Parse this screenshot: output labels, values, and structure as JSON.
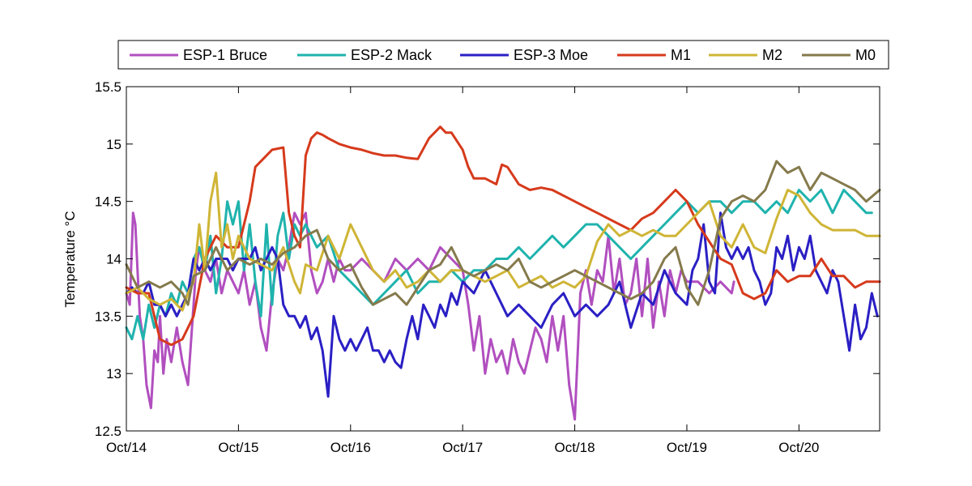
{
  "chart_data": {
    "type": "line",
    "title": "",
    "xlabel": "",
    "ylabel": "Temperature °C",
    "xlim": [
      0,
      6.72
    ],
    "ylim": [
      12.5,
      15.5
    ],
    "grid": false,
    "legend_position": "top",
    "x_ticks": [
      {
        "value": 0,
        "label": "Oct/14"
      },
      {
        "value": 1,
        "label": "Oct/15"
      },
      {
        "value": 2,
        "label": "Oct/16"
      },
      {
        "value": 3,
        "label": "Oct/17"
      },
      {
        "value": 4,
        "label": "Oct/18"
      },
      {
        "value": 5,
        "label": "Oct/19"
      },
      {
        "value": 6,
        "label": "Oct/20"
      }
    ],
    "y_ticks": [
      {
        "value": 12.5,
        "label": "12.5"
      },
      {
        "value": 13,
        "label": "13"
      },
      {
        "value": 13.5,
        "label": "13.5"
      },
      {
        "value": 14,
        "label": "14"
      },
      {
        "value": 14.5,
        "label": "14.5"
      },
      {
        "value": 15,
        "label": "15"
      },
      {
        "value": 15.5,
        "label": "15.5"
      }
    ],
    "series": [
      {
        "name": "ESP-1 Bruce",
        "color": "#b14fbf",
        "x": [
          0,
          0.03,
          0.06,
          0.08,
          0.1,
          0.12,
          0.15,
          0.18,
          0.22,
          0.25,
          0.28,
          0.3,
          0.33,
          0.36,
          0.4,
          0.45,
          0.5,
          0.55,
          0.6,
          0.62,
          0.65,
          0.7,
          0.75,
          0.8,
          0.85,
          0.9,
          0.95,
          1.0,
          1.05,
          1.1,
          1.15,
          1.2,
          1.25,
          1.3,
          1.35,
          1.4,
          1.45,
          1.5,
          1.55,
          1.6,
          1.65,
          1.7,
          1.75,
          1.8,
          1.85,
          1.9,
          1.95,
          2.0,
          2.1,
          2.2,
          2.3,
          2.4,
          2.5,
          2.6,
          2.7,
          2.8,
          2.9,
          3.0,
          3.05,
          3.1,
          3.15,
          3.2,
          3.25,
          3.3,
          3.35,
          3.4,
          3.45,
          3.5,
          3.55,
          3.6,
          3.65,
          3.7,
          3.75,
          3.8,
          3.85,
          3.9,
          3.95,
          4.0,
          4.05,
          4.1,
          4.15,
          4.2,
          4.25,
          4.3,
          4.35,
          4.4,
          4.45,
          4.5,
          4.55,
          4.6,
          4.65,
          4.7,
          4.75,
          4.8,
          4.85,
          4.9,
          4.95,
          5.0,
          5.1,
          5.2,
          5.3,
          5.4,
          5.42
        ],
        "values": [
          13.7,
          13.6,
          14.4,
          14.3,
          13.9,
          13.5,
          13.3,
          12.9,
          12.7,
          13.2,
          13.1,
          13.5,
          13.0,
          13.3,
          13.1,
          13.4,
          13.1,
          12.9,
          13.6,
          13.9,
          14.1,
          13.9,
          13.8,
          14.0,
          13.7,
          13.9,
          13.8,
          13.7,
          13.9,
          13.6,
          13.8,
          13.4,
          13.2,
          13.7,
          14.0,
          13.9,
          14.1,
          14.4,
          14.3,
          14.4,
          13.9,
          13.7,
          13.8,
          14.0,
          13.8,
          14.0,
          13.9,
          13.9,
          14.0,
          13.9,
          13.8,
          14.0,
          13.9,
          14.0,
          13.9,
          14.1,
          14.0,
          13.9,
          13.6,
          13.2,
          13.5,
          13.0,
          13.3,
          13.1,
          13.2,
          13.0,
          13.3,
          13.1,
          13.0,
          13.2,
          13.4,
          13.3,
          13.1,
          13.5,
          13.2,
          13.5,
          12.9,
          12.6,
          13.7,
          13.9,
          13.6,
          13.9,
          13.8,
          14.2,
          13.7,
          14.0,
          13.6,
          13.7,
          14.0,
          13.5,
          14.0,
          13.4,
          13.8,
          13.5,
          13.9,
          13.7,
          13.9,
          13.8,
          13.8,
          13.7,
          13.8,
          13.7,
          13.8
        ]
      },
      {
        "name": "ESP-2 Mack",
        "color": "#1fb3ad",
        "x": [
          0,
          0.05,
          0.1,
          0.15,
          0.2,
          0.25,
          0.3,
          0.35,
          0.4,
          0.45,
          0.5,
          0.55,
          0.6,
          0.65,
          0.7,
          0.75,
          0.8,
          0.85,
          0.9,
          0.95,
          1.0,
          1.05,
          1.1,
          1.15,
          1.2,
          1.25,
          1.3,
          1.35,
          1.4,
          1.45,
          1.5,
          1.55,
          1.6,
          1.7,
          1.8,
          1.9,
          2.0,
          2.1,
          2.2,
          2.3,
          2.4,
          2.5,
          2.6,
          2.7,
          2.8,
          2.9,
          3.0,
          3.1,
          3.2,
          3.3,
          3.4,
          3.5,
          3.6,
          3.7,
          3.8,
          3.9,
          4.0,
          4.1,
          4.2,
          4.3,
          4.4,
          4.5,
          4.6,
          4.7,
          4.8,
          4.9,
          5.0,
          5.1,
          5.2,
          5.3,
          5.4,
          5.5,
          5.6,
          5.7,
          5.8,
          5.9,
          6.0,
          6.1,
          6.2,
          6.3,
          6.4,
          6.5,
          6.6,
          6.65
        ],
        "values": [
          13.4,
          13.3,
          13.5,
          13.3,
          13.6,
          13.4,
          13.6,
          13.5,
          13.7,
          13.6,
          13.8,
          13.7,
          14.0,
          14.1,
          13.9,
          14.2,
          13.7,
          14.0,
          14.5,
          14.3,
          14.5,
          13.9,
          14.3,
          13.8,
          13.5,
          14.3,
          13.6,
          14.2,
          14.4,
          14.0,
          14.3,
          14.2,
          14.3,
          14.1,
          14.2,
          13.9,
          13.8,
          13.7,
          13.6,
          13.7,
          13.8,
          13.9,
          13.7,
          13.8,
          13.8,
          13.9,
          13.8,
          13.9,
          13.9,
          14.0,
          14.0,
          14.1,
          14.0,
          14.1,
          14.2,
          14.1,
          14.2,
          14.3,
          14.3,
          14.2,
          14.1,
          14.0,
          14.1,
          14.2,
          14.3,
          14.4,
          14.5,
          14.4,
          14.5,
          14.5,
          14.4,
          14.5,
          14.5,
          14.4,
          14.5,
          14.4,
          14.6,
          14.5,
          14.6,
          14.4,
          14.6,
          14.5,
          14.4,
          14.4
        ]
      },
      {
        "name": "ESP-3 Moe",
        "color": "#2a1fc4",
        "x": [
          0,
          0.05,
          0.1,
          0.15,
          0.2,
          0.25,
          0.3,
          0.35,
          0.4,
          0.45,
          0.5,
          0.55,
          0.6,
          0.65,
          0.7,
          0.75,
          0.8,
          0.85,
          0.9,
          0.95,
          1.0,
          1.05,
          1.1,
          1.15,
          1.2,
          1.25,
          1.3,
          1.35,
          1.4,
          1.45,
          1.5,
          1.55,
          1.6,
          1.65,
          1.7,
          1.75,
          1.8,
          1.85,
          1.9,
          1.95,
          2.0,
          2.05,
          2.1,
          2.15,
          2.2,
          2.25,
          2.3,
          2.35,
          2.4,
          2.45,
          2.5,
          2.55,
          2.6,
          2.65,
          2.7,
          2.75,
          2.8,
          2.85,
          2.9,
          2.95,
          3.0,
          3.1,
          3.2,
          3.3,
          3.4,
          3.5,
          3.6,
          3.7,
          3.8,
          3.9,
          4.0,
          4.1,
          4.2,
          4.3,
          4.4,
          4.5,
          4.6,
          4.7,
          4.8,
          4.9,
          5.0,
          5.05,
          5.1,
          5.15,
          5.2,
          5.25,
          5.3,
          5.35,
          5.4,
          5.45,
          5.5,
          5.55,
          5.6,
          5.65,
          5.7,
          5.75,
          5.8,
          5.85,
          5.9,
          5.95,
          6.0,
          6.05,
          6.1,
          6.15,
          6.2,
          6.25,
          6.3,
          6.35,
          6.4,
          6.45,
          6.5,
          6.55,
          6.6,
          6.65,
          6.7
        ],
        "values": [
          13.7,
          13.75,
          13.7,
          13.7,
          13.8,
          13.6,
          13.6,
          13.5,
          13.6,
          13.5,
          13.6,
          13.7,
          14.0,
          13.9,
          14.0,
          13.9,
          14.0,
          14.0,
          14.0,
          13.9,
          14.0,
          14.0,
          14.0,
          14.1,
          13.9,
          14.0,
          14.1,
          14.0,
          13.6,
          13.5,
          13.5,
          13.4,
          13.5,
          13.3,
          13.4,
          13.2,
          12.8,
          13.5,
          13.3,
          13.2,
          13.3,
          13.2,
          13.3,
          13.4,
          13.2,
          13.2,
          13.1,
          13.2,
          13.1,
          13.05,
          13.3,
          13.5,
          13.3,
          13.6,
          13.5,
          13.4,
          13.6,
          13.5,
          13.7,
          13.6,
          13.8,
          13.7,
          13.9,
          13.7,
          13.5,
          13.6,
          13.5,
          13.4,
          13.6,
          13.7,
          13.5,
          13.6,
          13.5,
          13.6,
          13.8,
          13.4,
          13.7,
          13.6,
          13.9,
          13.7,
          13.6,
          13.9,
          14.0,
          14.3,
          13.8,
          13.7,
          14.4,
          14.1,
          14.0,
          14.1,
          14.0,
          14.1,
          13.9,
          13.8,
          13.6,
          13.7,
          14.1,
          14.0,
          14.2,
          13.9,
          14.1,
          14.0,
          14.2,
          13.9,
          13.8,
          13.7,
          13.9,
          13.8,
          13.5,
          13.2,
          13.6,
          13.3,
          13.4,
          13.7,
          13.5
        ]
      },
      {
        "name": "M1",
        "color": "#d63a1c",
        "x": [
          0,
          0.1,
          0.2,
          0.3,
          0.4,
          0.5,
          0.6,
          0.7,
          0.8,
          0.9,
          1.0,
          1.05,
          1.1,
          1.15,
          1.2,
          1.3,
          1.4,
          1.45,
          1.5,
          1.55,
          1.6,
          1.65,
          1.7,
          1.75,
          1.8,
          1.9,
          2.0,
          2.1,
          2.2,
          2.3,
          2.4,
          2.5,
          2.6,
          2.7,
          2.75,
          2.8,
          2.85,
          2.9,
          3.0,
          3.05,
          3.1,
          3.2,
          3.3,
          3.35,
          3.4,
          3.5,
          3.6,
          3.7,
          3.8,
          3.9,
          4.0,
          4.1,
          4.2,
          4.3,
          4.4,
          4.5,
          4.6,
          4.7,
          4.8,
          4.9,
          5.0,
          5.1,
          5.2,
          5.3,
          5.4,
          5.5,
          5.6,
          5.7,
          5.8,
          5.9,
          6.0,
          6.1,
          6.2,
          6.3,
          6.4,
          6.5,
          6.6,
          6.72
        ],
        "values": [
          13.75,
          13.7,
          13.7,
          13.3,
          13.25,
          13.3,
          13.5,
          14.0,
          14.2,
          14.1,
          14.1,
          14.3,
          14.5,
          14.8,
          14.85,
          14.95,
          14.97,
          14.4,
          14.2,
          14.1,
          14.9,
          15.05,
          15.1,
          15.08,
          15.05,
          15.0,
          14.97,
          14.95,
          14.92,
          14.9,
          14.9,
          14.88,
          14.87,
          15.05,
          15.1,
          15.15,
          15.1,
          15.1,
          14.95,
          14.8,
          14.7,
          14.7,
          14.65,
          14.82,
          14.8,
          14.65,
          14.6,
          14.62,
          14.6,
          14.55,
          14.5,
          14.45,
          14.4,
          14.35,
          14.3,
          14.25,
          14.35,
          14.4,
          14.5,
          14.6,
          14.5,
          14.3,
          14.15,
          14.0,
          13.95,
          13.7,
          13.65,
          13.7,
          13.9,
          13.8,
          13.85,
          13.85,
          14.0,
          13.85,
          13.85,
          13.75,
          13.8,
          13.8
        ]
      },
      {
        "name": "M2",
        "color": "#cfb536",
        "x": [
          0,
          0.1,
          0.2,
          0.3,
          0.4,
          0.5,
          0.55,
          0.6,
          0.65,
          0.7,
          0.75,
          0.8,
          0.85,
          0.9,
          0.95,
          1.0,
          1.05,
          1.1,
          1.2,
          1.3,
          1.4,
          1.5,
          1.55,
          1.6,
          1.7,
          1.8,
          1.9,
          2.0,
          2.1,
          2.2,
          2.3,
          2.4,
          2.5,
          2.6,
          2.7,
          2.8,
          2.9,
          3.0,
          3.1,
          3.2,
          3.3,
          3.4,
          3.5,
          3.6,
          3.7,
          3.8,
          3.9,
          4.0,
          4.1,
          4.2,
          4.3,
          4.4,
          4.5,
          4.6,
          4.7,
          4.8,
          4.9,
          5.0,
          5.1,
          5.2,
          5.3,
          5.4,
          5.5,
          5.6,
          5.7,
          5.8,
          5.9,
          6.0,
          6.1,
          6.2,
          6.3,
          6.4,
          6.5,
          6.6,
          6.72
        ],
        "values": [
          13.7,
          13.75,
          13.65,
          13.6,
          13.65,
          13.55,
          13.7,
          13.8,
          14.3,
          13.9,
          14.5,
          14.75,
          14.1,
          14.3,
          14.0,
          14.2,
          14.1,
          14.0,
          13.95,
          13.9,
          14.1,
          13.8,
          13.7,
          13.95,
          13.9,
          14.2,
          14.0,
          14.3,
          14.1,
          13.9,
          13.8,
          13.9,
          13.75,
          13.8,
          13.9,
          13.8,
          13.9,
          13.9,
          13.85,
          13.8,
          13.85,
          13.9,
          13.75,
          13.8,
          13.85,
          13.75,
          13.8,
          13.75,
          13.85,
          14.15,
          14.3,
          14.2,
          14.25,
          14.2,
          14.25,
          14.2,
          14.2,
          14.3,
          14.4,
          14.5,
          14.2,
          14.1,
          14.3,
          14.1,
          14.05,
          14.35,
          14.6,
          14.55,
          14.4,
          14.3,
          14.25,
          14.25,
          14.25,
          14.2,
          14.2
        ]
      },
      {
        "name": "M0",
        "color": "#857a4c",
        "x": [
          0,
          0.1,
          0.2,
          0.3,
          0.4,
          0.5,
          0.55,
          0.6,
          0.7,
          0.8,
          0.9,
          1.0,
          1.1,
          1.2,
          1.3,
          1.4,
          1.5,
          1.6,
          1.7,
          1.8,
          1.9,
          2.0,
          2.1,
          2.2,
          2.3,
          2.4,
          2.5,
          2.6,
          2.7,
          2.8,
          2.9,
          3.0,
          3.1,
          3.2,
          3.3,
          3.4,
          3.5,
          3.6,
          3.7,
          3.8,
          3.9,
          4.0,
          4.1,
          4.2,
          4.3,
          4.4,
          4.5,
          4.6,
          4.7,
          4.8,
          4.9,
          5.0,
          5.1,
          5.2,
          5.3,
          5.4,
          5.5,
          5.6,
          5.7,
          5.8,
          5.9,
          6.0,
          6.1,
          6.2,
          6.3,
          6.4,
          6.5,
          6.6,
          6.72
        ],
        "values": [
          13.95,
          13.75,
          13.8,
          13.75,
          13.8,
          13.7,
          13.6,
          13.85,
          13.9,
          14.1,
          13.9,
          14.0,
          13.95,
          14.0,
          13.95,
          14.05,
          14.1,
          14.2,
          14.25,
          14.0,
          13.9,
          13.95,
          13.75,
          13.6,
          13.65,
          13.7,
          13.6,
          13.75,
          13.9,
          13.95,
          14.1,
          13.9,
          13.85,
          13.9,
          13.95,
          13.9,
          14.0,
          13.8,
          13.75,
          13.8,
          13.85,
          13.9,
          13.85,
          13.8,
          13.75,
          13.7,
          13.65,
          13.7,
          13.8,
          14.0,
          14.1,
          13.75,
          13.6,
          13.9,
          14.35,
          14.5,
          14.55,
          14.5,
          14.6,
          14.85,
          14.75,
          14.8,
          14.6,
          14.75,
          14.7,
          14.65,
          14.6,
          14.5,
          14.6
        ]
      }
    ]
  }
}
